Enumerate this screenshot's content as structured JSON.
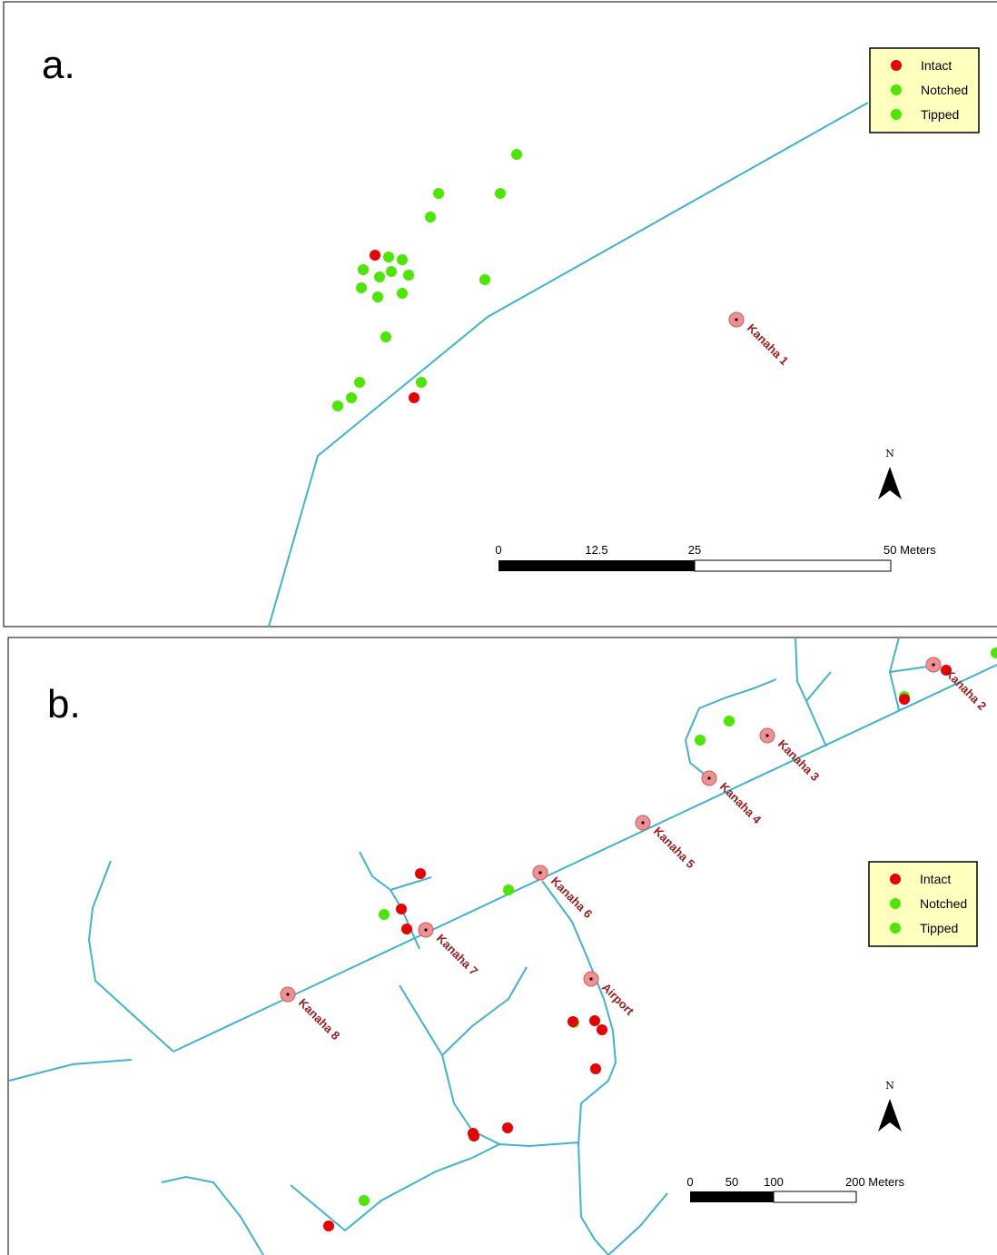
{
  "colors": {
    "intact": "#e60000",
    "notched": "#4ce600",
    "tipped": "#4ce600",
    "road": "#3fb3cf",
    "site_fill": "#f09090",
    "site_label": "#9b1c1c",
    "legend_bg": "#ffffbe"
  },
  "panel_a": {
    "letter": "a.",
    "legend": [
      "Intact",
      "Notched",
      "Tipped"
    ],
    "north": "N",
    "scale": {
      "ticks": [
        "0",
        "12.5",
        "25",
        "50 Meters"
      ]
    },
    "sites": [
      {
        "label": "Kanaha 1"
      }
    ]
  },
  "panel_b": {
    "letter": "b.",
    "legend": [
      "Intact",
      "Notched",
      "Tipped"
    ],
    "north": "N",
    "scale": {
      "ticks": [
        "0",
        "50",
        "100",
        "200 Meters"
      ]
    },
    "sites": [
      {
        "label": "Kanaha 2"
      },
      {
        "label": "Kanaha 3"
      },
      {
        "label": "Kanaha 4"
      },
      {
        "label": "Kanaha 5"
      },
      {
        "label": "Kanaha 6"
      },
      {
        "label": "Kanaha 7"
      },
      {
        "label": "Airport"
      },
      {
        "label": "Kanaha 8"
      }
    ]
  }
}
